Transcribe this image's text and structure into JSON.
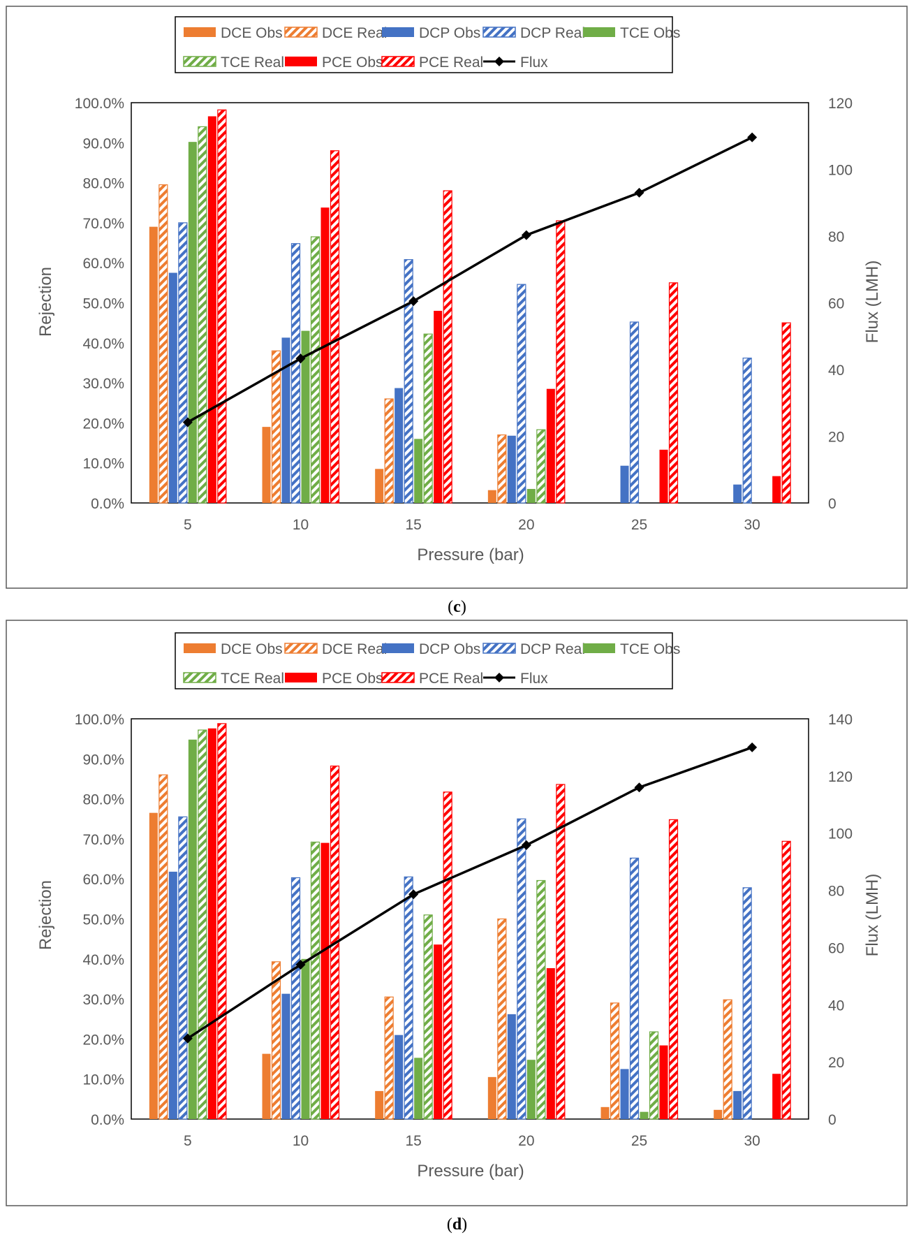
{
  "colors": {
    "DCE": "#ed7d31",
    "DCP": "#4472c4",
    "TCE": "#70ad47",
    "PCE": "#ff0000",
    "flux": "#000000",
    "axis": "#000000",
    "label": "#595959",
    "frame": "#595959"
  },
  "chart_data": [
    {
      "type": "bar",
      "caption": "c",
      "categories": [
        "5",
        "10",
        "15",
        "20",
        "25",
        "30"
      ],
      "xlabel": "Pressure (bar)",
      "ylabel": "Rejection",
      "y2label": "Flux (LMH)",
      "ylim": [
        0,
        100
      ],
      "y_ticks": [
        "0.0%",
        "10.0%",
        "20.0%",
        "30.0%",
        "40.0%",
        "50.0%",
        "60.0%",
        "70.0%",
        "80.0%",
        "90.0%",
        "100.0%"
      ],
      "y2lim": [
        0,
        120
      ],
      "y2_ticks": [
        "0",
        "20",
        "40",
        "60",
        "80",
        "100",
        "120"
      ],
      "legend": [
        "DCE Obs",
        "DCE Real",
        "DCP Obs",
        "DCP Real",
        "TCE Obs",
        "TCE Real",
        "PCE Obs",
        "PCE Real",
        "Flux"
      ],
      "series": [
        {
          "name": "DCE Obs",
          "compound": "DCE",
          "style": "solid",
          "values": [
            69,
            19,
            8.5,
            3.2,
            0,
            0
          ]
        },
        {
          "name": "DCE Real",
          "compound": "DCE",
          "style": "hatch",
          "values": [
            79.5,
            38,
            26,
            17,
            0,
            0
          ]
        },
        {
          "name": "DCP Obs",
          "compound": "DCP",
          "style": "solid",
          "values": [
            57.5,
            41.3,
            28.7,
            16.8,
            9.3,
            4.6
          ]
        },
        {
          "name": "DCP Real",
          "compound": "DCP",
          "style": "hatch",
          "values": [
            70,
            64.8,
            60.8,
            54.6,
            45.2,
            36.2
          ]
        },
        {
          "name": "TCE Obs",
          "compound": "TCE",
          "style": "solid",
          "values": [
            90.2,
            43,
            16,
            3.5,
            0,
            0
          ]
        },
        {
          "name": "TCE Real",
          "compound": "TCE",
          "style": "hatch",
          "values": [
            94,
            66.5,
            42.2,
            18.3,
            0,
            0
          ]
        },
        {
          "name": "PCE Obs",
          "compound": "PCE",
          "style": "solid",
          "values": [
            96.6,
            73.8,
            48,
            28.5,
            13.3,
            6.7
          ]
        },
        {
          "name": "PCE Real",
          "compound": "PCE",
          "style": "hatch",
          "values": [
            98.2,
            88,
            78,
            70.5,
            55,
            45
          ]
        }
      ],
      "flux": {
        "name": "Flux",
        "values": [
          24.2,
          43.3,
          60.5,
          80.3,
          93,
          109.6
        ]
      }
    },
    {
      "type": "bar",
      "caption": "d",
      "categories": [
        "5",
        "10",
        "15",
        "20",
        "25",
        "30"
      ],
      "xlabel": "Pressure (bar)",
      "ylabel": "Rejection",
      "y2label": "Flux (LMH)",
      "ylim": [
        0,
        100
      ],
      "y_ticks": [
        "0.0%",
        "10.0%",
        "20.0%",
        "30.0%",
        "40.0%",
        "50.0%",
        "60.0%",
        "70.0%",
        "80.0%",
        "90.0%",
        "100.0%"
      ],
      "y2lim": [
        0,
        140
      ],
      "y2_ticks": [
        "0",
        "20",
        "40",
        "60",
        "80",
        "100",
        "120",
        "140"
      ],
      "legend": [
        "DCE Obs",
        "DCE Real",
        "DCP Obs",
        "DCP Real",
        "TCE Obs",
        "TCE Real",
        "PCE Obs",
        "PCE Real",
        "Flux"
      ],
      "series": [
        {
          "name": "DCE Obs",
          "compound": "DCE",
          "style": "solid",
          "values": [
            76.5,
            16.3,
            7,
            10.5,
            3,
            2.3
          ]
        },
        {
          "name": "DCE Real",
          "compound": "DCE",
          "style": "hatch",
          "values": [
            86,
            39.3,
            30.5,
            50,
            29,
            29.8
          ]
        },
        {
          "name": "DCP Obs",
          "compound": "DCP",
          "style": "solid",
          "values": [
            61.8,
            31.3,
            21,
            26.2,
            12.5,
            7
          ]
        },
        {
          "name": "DCP Real",
          "compound": "DCP",
          "style": "hatch",
          "values": [
            75.5,
            60.3,
            60.5,
            75,
            65.2,
            57.8
          ]
        },
        {
          "name": "TCE Obs",
          "compound": "TCE",
          "style": "solid",
          "values": [
            94.8,
            40,
            15.3,
            14.8,
            1.8,
            0
          ]
        },
        {
          "name": "TCE Real",
          "compound": "TCE",
          "style": "hatch",
          "values": [
            97.2,
            69.2,
            51,
            59.6,
            21.8,
            0
          ]
        },
        {
          "name": "PCE Obs",
          "compound": "PCE",
          "style": "solid",
          "values": [
            97.6,
            69,
            43.6,
            37.7,
            18.4,
            11.3
          ]
        },
        {
          "name": "PCE Real",
          "compound": "PCE",
          "style": "hatch",
          "values": [
            98.8,
            88.2,
            81.7,
            83.6,
            74.8,
            69.4
          ]
        }
      ],
      "flux": {
        "name": "Flux",
        "values": [
          28.2,
          54,
          78.6,
          95.8,
          116,
          130
        ]
      }
    }
  ]
}
